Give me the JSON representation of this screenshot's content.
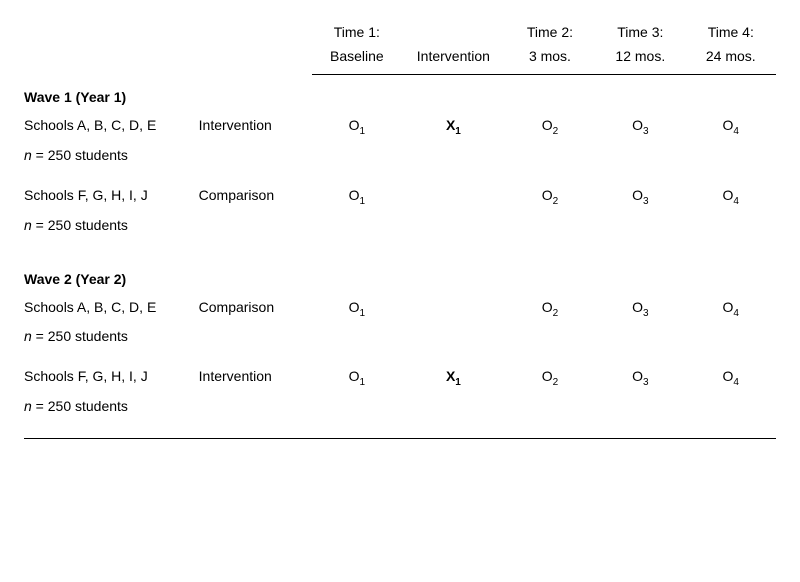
{
  "header": {
    "time1_top": "Time 1:",
    "time1_bottom": "Baseline",
    "intervention_label": "Intervention",
    "time2_top": "Time 2:",
    "time2_bottom": "3 mos.",
    "time3_top": "Time 3:",
    "time3_bottom": "12 mos.",
    "time4_top": "Time 4:",
    "time4_bottom": "24 mos."
  },
  "wave1": {
    "title": "Wave 1 (Year 1)",
    "row1": {
      "schools": "Schools A, B, C, D, E",
      "group": "Intervention",
      "n_label": "n",
      "n_text": " = 250 students",
      "o1": "O",
      "o1_sub": "1",
      "x": "X",
      "x_sub": "1",
      "o2": "O",
      "o2_sub": "2",
      "o3": "O",
      "o3_sub": "3",
      "o4": "O",
      "o4_sub": "4"
    },
    "row2": {
      "schools": "Schools F, G, H, I, J",
      "group": "Comparison",
      "n_label": "n",
      "n_text": " = 250 students",
      "o1": "O",
      "o1_sub": "1",
      "o2": "O",
      "o2_sub": "2",
      "o3": "O",
      "o3_sub": "3",
      "o4": "O",
      "o4_sub": "4"
    }
  },
  "wave2": {
    "title": "Wave 2 (Year 2)",
    "row1": {
      "schools": "Schools A, B, C, D, E",
      "group": "Comparison",
      "n_label": "n",
      "n_text": " = 250 students",
      "o1": "O",
      "o1_sub": "1",
      "o2": "O",
      "o2_sub": "2",
      "o3": "O",
      "o3_sub": "3",
      "o4": "O",
      "o4_sub": "4"
    },
    "row2": {
      "schools": "Schools F, G, H, I, J",
      "group": "Intervention",
      "n_label": "n",
      "n_text": " = 250 students",
      "o1": "O",
      "o1_sub": "1",
      "x": "X",
      "x_sub": "1",
      "o2": "O",
      "o2_sub": "2",
      "o3": "O",
      "o3_sub": "3",
      "o4": "O",
      "o4_sub": "4"
    }
  }
}
